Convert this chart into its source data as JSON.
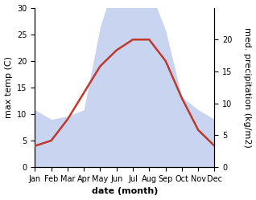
{
  "months": [
    "Jan",
    "Feb",
    "Mar",
    "Apr",
    "May",
    "Jun",
    "Jul",
    "Aug",
    "Sep",
    "Oct",
    "Nov",
    "Dec"
  ],
  "max_temp": [
    4,
    5,
    9,
    14,
    19,
    22,
    24,
    24,
    20,
    13,
    7,
    4
  ],
  "precipitation": [
    9,
    7.5,
    8,
    9,
    22,
    30,
    26,
    28,
    21.5,
    11,
    9,
    7.5
  ],
  "temp_color": "#c0392b",
  "precip_color_fill": "#c8d4f0",
  "background": "#ffffff",
  "ylabel_left": "max temp (C)",
  "ylabel_right": "med. precipitation (kg/m2)",
  "xlabel": "date (month)",
  "ylim_left": [
    0,
    30
  ],
  "ylim_right": [
    0,
    25
  ],
  "right_yticks": [
    0,
    5,
    10,
    15,
    20
  ],
  "label_fontsize": 8,
  "tick_fontsize": 7
}
